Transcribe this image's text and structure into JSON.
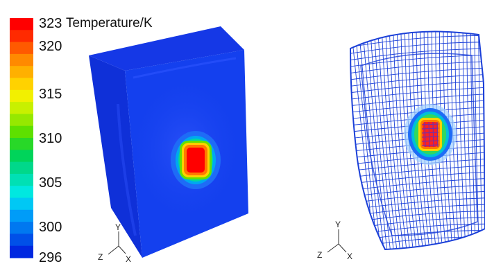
{
  "legend": {
    "title": "Temperature/K",
    "max_label": "323",
    "min_label": "296",
    "ticks": [
      "320",
      "315",
      "310",
      "305",
      "300"
    ],
    "colors": [
      "#ff0000",
      "#ff2a00",
      "#ff5a00",
      "#ff8a00",
      "#ffb000",
      "#ffd200",
      "#f2f000",
      "#c8f000",
      "#96e800",
      "#5ee000",
      "#28d828",
      "#00d45a",
      "#00d88a",
      "#00e0b4",
      "#00e8e0",
      "#00c8f4",
      "#009cf8",
      "#0078f0",
      "#0050e8",
      "#0028e0"
    ]
  },
  "views": {
    "left": {
      "description_axes": [
        "Y",
        "Z",
        "X"
      ]
    },
    "right": {
      "description_axes": [
        "Y",
        "Z",
        "X"
      ]
    }
  },
  "triad": {
    "y": "Y",
    "z": "Z",
    "x": "X"
  },
  "colors": {
    "body_blue": "#1440ee",
    "mesh_blue": "#1a3fd8",
    "hot_red": "#ff0000"
  }
}
